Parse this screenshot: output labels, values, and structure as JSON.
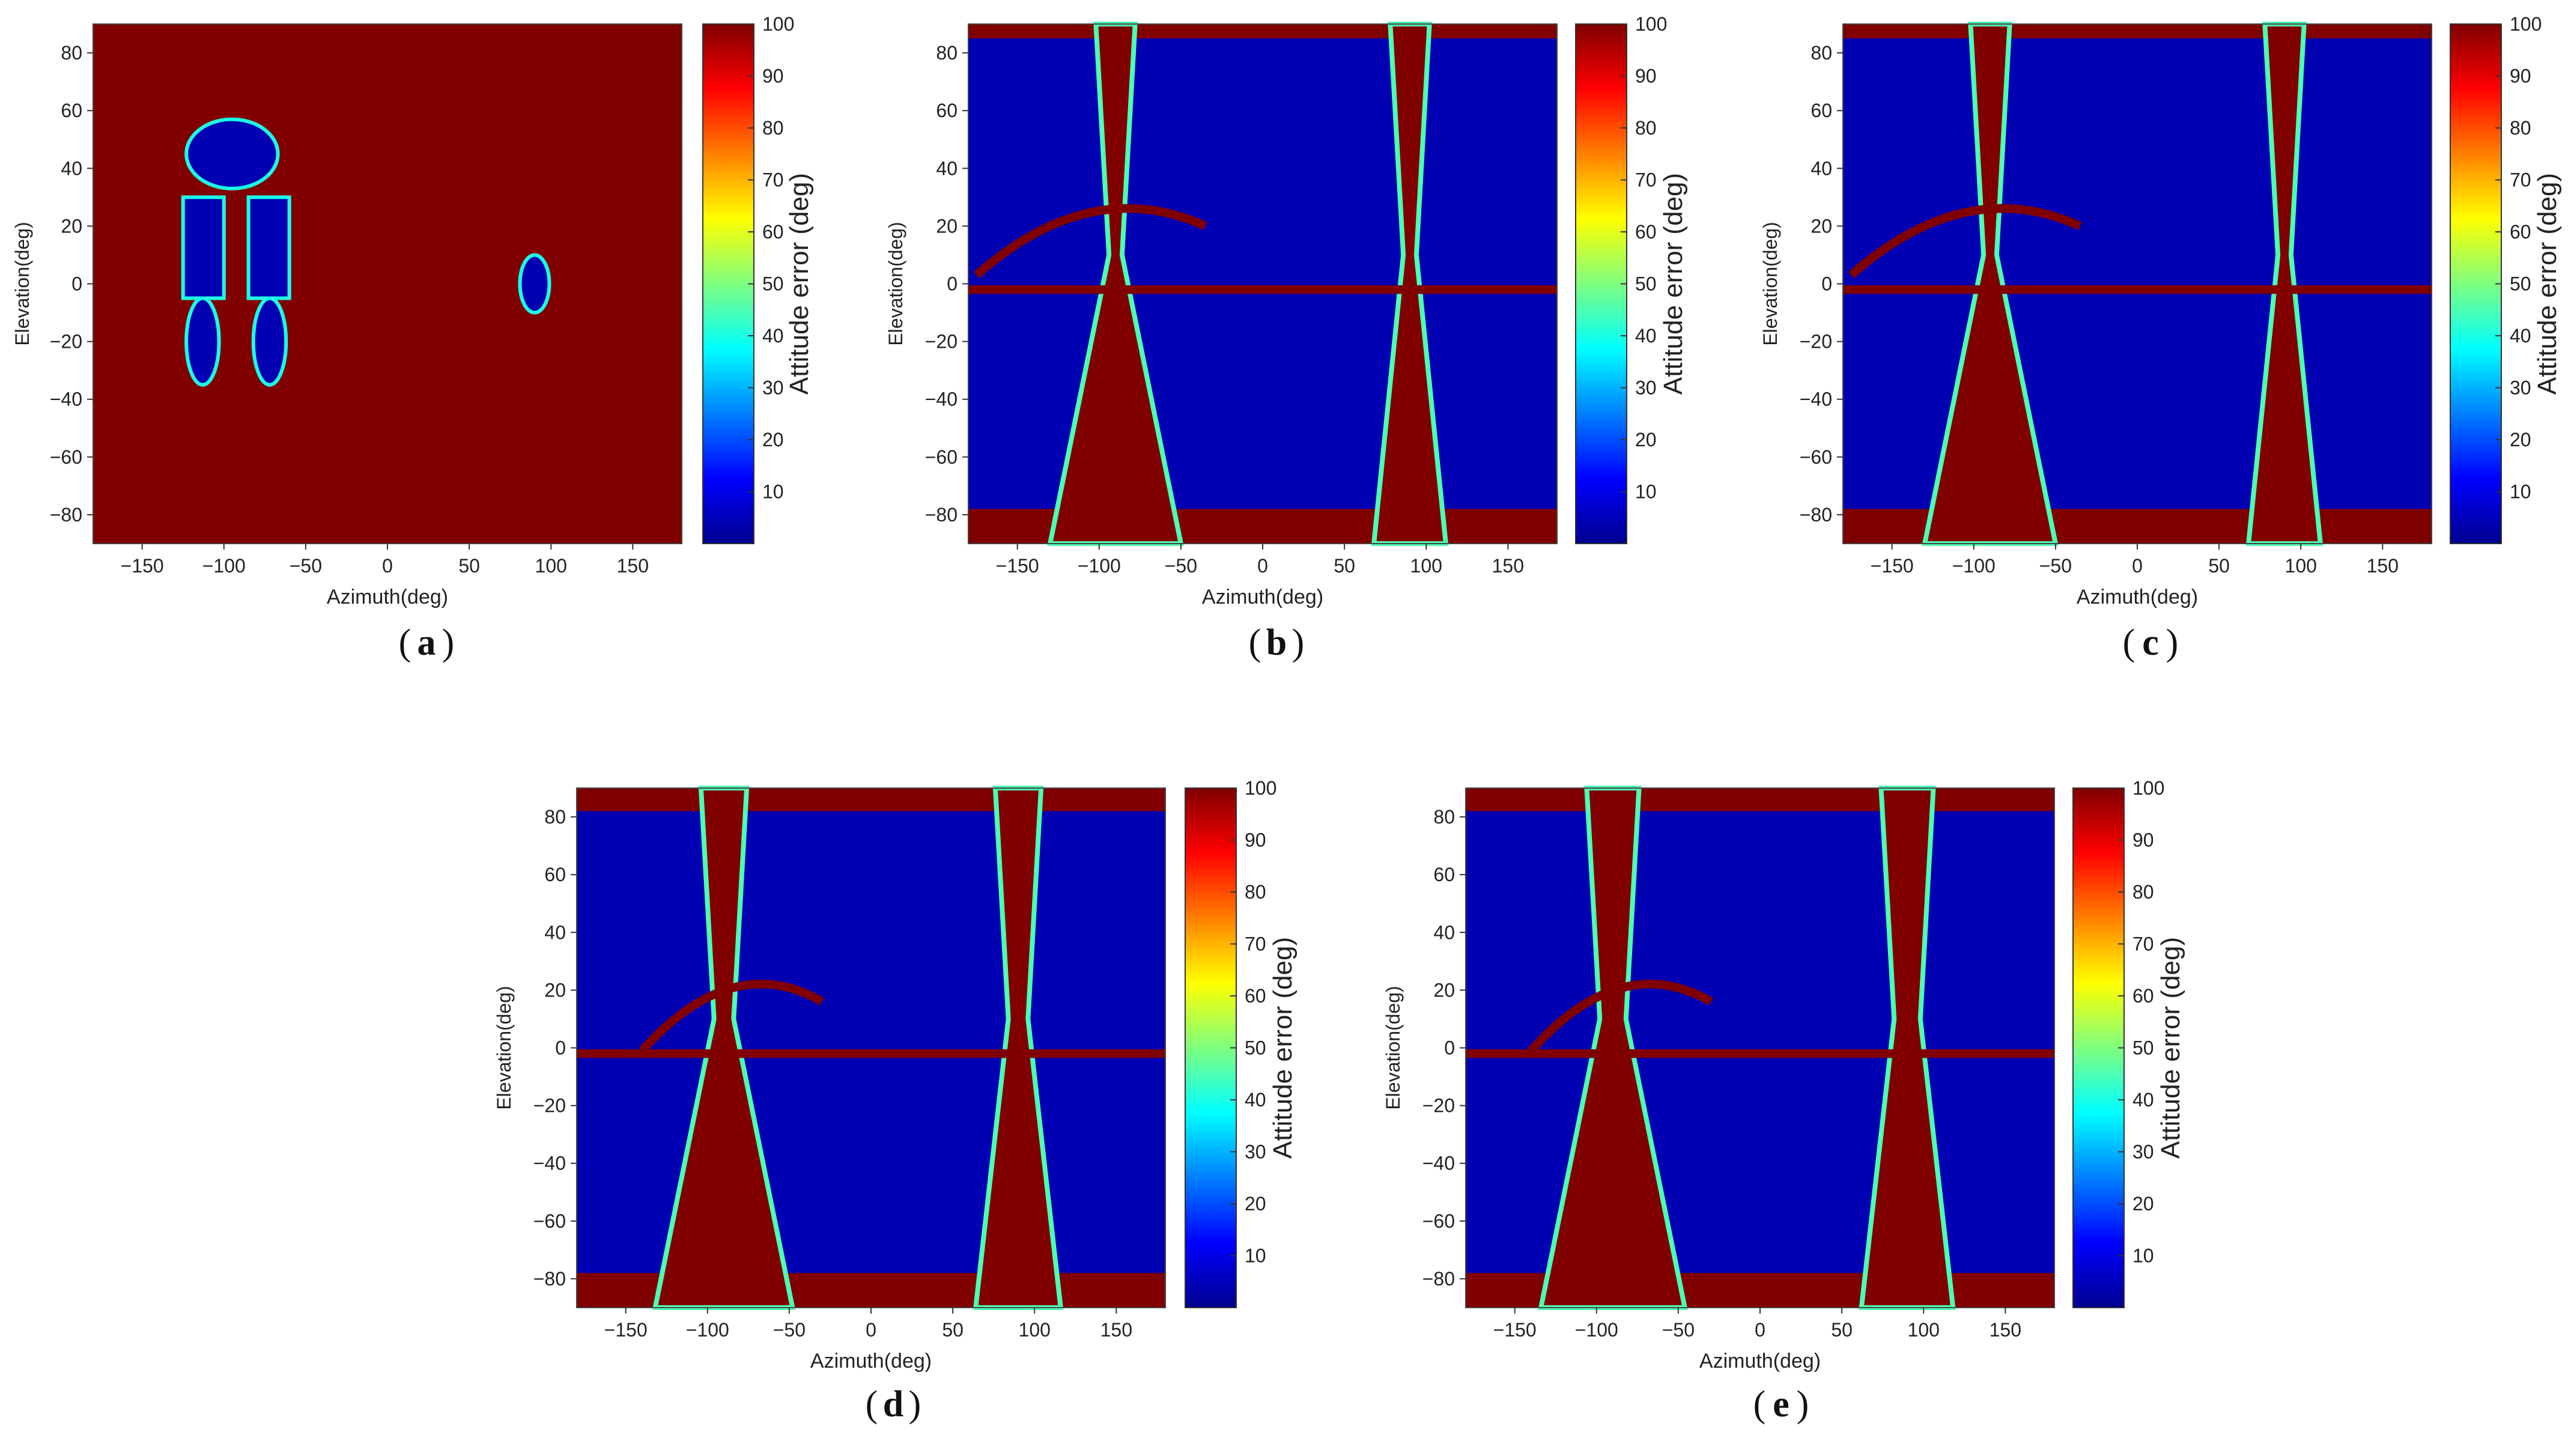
{
  "chart_data": [
    {
      "type": "heatmap",
      "panel_label": "a",
      "xlabel": "Azimuth(deg)",
      "ylabel": "Elevation(deg)",
      "xlim": [
        -180,
        180
      ],
      "ylim": [
        -90,
        90
      ],
      "x_ticks": [
        -150,
        -100,
        -50,
        0,
        50,
        100,
        150
      ],
      "y_ticks": [
        -80,
        -60,
        -40,
        -20,
        0,
        20,
        40,
        60,
        80
      ],
      "colorbar": {
        "label": "Attitude error (deg)",
        "range": [
          0,
          100
        ],
        "ticks": [
          10,
          20,
          30,
          40,
          50,
          60,
          70,
          80,
          90,
          100
        ],
        "colormap": "jet"
      },
      "background_value": 100,
      "regions": [
        {
          "shape": "ellipse",
          "cx": -95,
          "cy": 45,
          "rx": 28,
          "ry": 12,
          "value": 5
        },
        {
          "shape": "rect",
          "x0": -125,
          "x1": -100,
          "y0": -5,
          "y1": 30,
          "value": 5
        },
        {
          "shape": "rect",
          "x0": -85,
          "x1": -60,
          "y0": -5,
          "y1": 30,
          "value": 5
        },
        {
          "shape": "ellipse",
          "cx": -113,
          "cy": -20,
          "rx": 10,
          "ry": 15,
          "value": 5
        },
        {
          "shape": "ellipse",
          "cx": -72,
          "cy": -20,
          "rx": 10,
          "ry": 15,
          "value": 5
        },
        {
          "shape": "ellipse",
          "cx": 90,
          "cy": 0,
          "rx": 9,
          "ry": 10,
          "value": 5
        }
      ]
    },
    {
      "type": "heatmap",
      "panel_label": "b",
      "xlabel": "Azimuth(deg)",
      "ylabel": "Elevation(deg)",
      "xlim": [
        -180,
        180
      ],
      "ylim": [
        -90,
        90
      ],
      "x_ticks": [
        -150,
        -100,
        -50,
        0,
        50,
        100,
        150
      ],
      "y_ticks": [
        -80,
        -60,
        -40,
        -20,
        0,
        20,
        40,
        60,
        80
      ],
      "colorbar": {
        "label": "Attitude error (deg)",
        "range": [
          0,
          100
        ],
        "ticks": [
          10,
          20,
          30,
          40,
          50,
          60,
          70,
          80,
          90,
          100
        ],
        "colormap": "jet"
      },
      "background_value": 5,
      "regions": [
        {
          "shape": "band",
          "y0": 85,
          "y1": 90,
          "value": 100
        },
        {
          "shape": "band",
          "y0": -90,
          "y1": -78,
          "value": 100
        },
        {
          "shape": "column",
          "cx": -90,
          "wtop": 12,
          "wmid": 4,
          "wbot": 40,
          "value": 100
        },
        {
          "shape": "column",
          "cx": 90,
          "wtop": 12,
          "wmid": 4,
          "wbot": 22,
          "value": 100
        },
        {
          "shape": "line",
          "x0": -180,
          "x1": 180,
          "y": -2,
          "h": 3,
          "value": 100
        },
        {
          "shape": "arc",
          "x0": -175,
          "x1": -35,
          "y": 28,
          "h": 3,
          "value": 100
        }
      ]
    },
    {
      "type": "heatmap",
      "panel_label": "c",
      "xlabel": "Azimuth(deg)",
      "ylabel": "Elevation(deg)",
      "xlim": [
        -180,
        180
      ],
      "ylim": [
        -90,
        90
      ],
      "x_ticks": [
        -150,
        -100,
        -50,
        0,
        50,
        100,
        150
      ],
      "y_ticks": [
        -80,
        -60,
        -40,
        -20,
        0,
        20,
        40,
        60,
        80
      ],
      "colorbar": {
        "label": "Attitude error (deg)",
        "range": [
          0,
          100
        ],
        "ticks": [
          10,
          20,
          30,
          40,
          50,
          60,
          70,
          80,
          90,
          100
        ],
        "colormap": "jet"
      },
      "background_value": 5,
      "regions": [
        {
          "shape": "band",
          "y0": 85,
          "y1": 90,
          "value": 100
        },
        {
          "shape": "band",
          "y0": -90,
          "y1": -78,
          "value": 100
        },
        {
          "shape": "column",
          "cx": -90,
          "wtop": 12,
          "wmid": 4,
          "wbot": 40,
          "value": 100
        },
        {
          "shape": "column",
          "cx": 90,
          "wtop": 12,
          "wmid": 4,
          "wbot": 22,
          "value": 100
        },
        {
          "shape": "line",
          "x0": -180,
          "x1": 180,
          "y": -2,
          "h": 3,
          "value": 100
        },
        {
          "shape": "arc",
          "x0": -175,
          "x1": -35,
          "y": 28,
          "h": 3,
          "value": 100
        }
      ]
    },
    {
      "type": "heatmap",
      "panel_label": "d",
      "xlabel": "Azimuth(deg)",
      "ylabel": "Elevation(deg)",
      "xlim": [
        -180,
        180
      ],
      "ylim": [
        -90,
        90
      ],
      "x_ticks": [
        -150,
        -100,
        -50,
        0,
        50,
        100,
        150
      ],
      "y_ticks": [
        -80,
        -60,
        -40,
        -20,
        0,
        20,
        40,
        60,
        80
      ],
      "colorbar": {
        "label": "Attitude error (deg)",
        "range": [
          0,
          100
        ],
        "ticks": [
          10,
          20,
          30,
          40,
          50,
          60,
          70,
          80,
          90,
          100
        ],
        "colormap": "jet"
      },
      "background_value": 5,
      "regions": [
        {
          "shape": "band",
          "y0": 82,
          "y1": 90,
          "value": 100
        },
        {
          "shape": "band",
          "y0": -90,
          "y1": -78,
          "value": 100
        },
        {
          "shape": "column",
          "cx": -90,
          "wtop": 14,
          "wmid": 6,
          "wbot": 42,
          "value": 100
        },
        {
          "shape": "column",
          "cx": 90,
          "wtop": 14,
          "wmid": 6,
          "wbot": 26,
          "value": 100
        },
        {
          "shape": "line",
          "x0": -180,
          "x1": 180,
          "y": -2,
          "h": 3,
          "value": 100
        },
        {
          "shape": "arc",
          "x0": -140,
          "x1": -30,
          "y": 24,
          "h": 3,
          "value": 100
        }
      ]
    },
    {
      "type": "heatmap",
      "panel_label": "e",
      "xlabel": "Azimuth(deg)",
      "ylabel": "Elevation(deg)",
      "xlim": [
        -180,
        180
      ],
      "ylim": [
        -90,
        90
      ],
      "x_ticks": [
        -150,
        -100,
        -50,
        0,
        50,
        100,
        150
      ],
      "y_ticks": [
        -80,
        -60,
        -40,
        -20,
        0,
        20,
        40,
        60,
        80
      ],
      "colorbar": {
        "label": "Attitude error (deg)",
        "range": [
          0,
          100
        ],
        "ticks": [
          10,
          20,
          30,
          40,
          50,
          60,
          70,
          80,
          90,
          100
        ],
        "colormap": "jet"
      },
      "background_value": 5,
      "regions": [
        {
          "shape": "band",
          "y0": 82,
          "y1": 90,
          "value": 100
        },
        {
          "shape": "band",
          "y0": -90,
          "y1": -78,
          "value": 100
        },
        {
          "shape": "column",
          "cx": -90,
          "wtop": 16,
          "wmid": 8,
          "wbot": 44,
          "value": 100
        },
        {
          "shape": "column",
          "cx": 90,
          "wtop": 16,
          "wmid": 8,
          "wbot": 28,
          "value": 100
        },
        {
          "shape": "line",
          "x0": -180,
          "x1": 180,
          "y": -2,
          "h": 3,
          "value": 100
        },
        {
          "shape": "arc",
          "x0": -140,
          "x1": -30,
          "y": 24,
          "h": 3,
          "value": 100
        }
      ]
    }
  ]
}
